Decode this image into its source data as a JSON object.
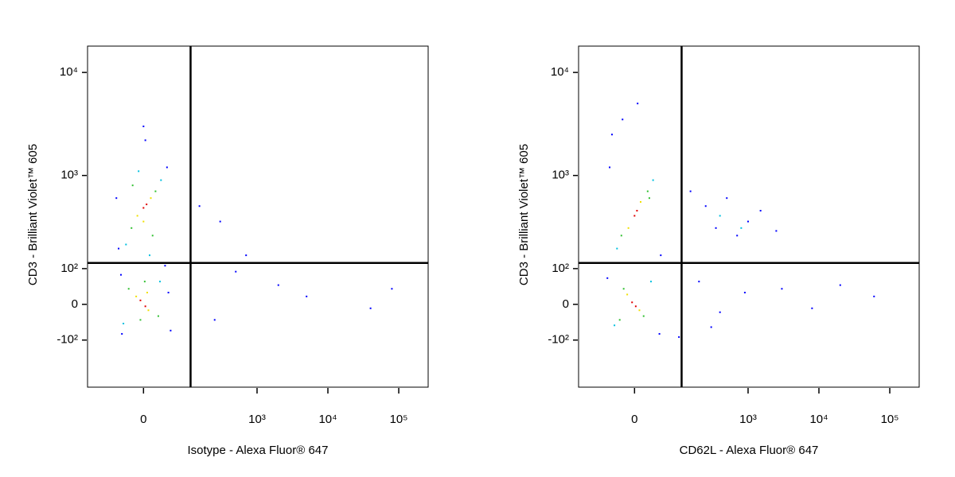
{
  "chart_data": [
    {
      "type": "scatter",
      "xlabel": "Isotype - Alexa Fluor® 647",
      "ylabel": "CD3 - Brilliant Violet™ 605",
      "xlim": [
        -150,
        260000
      ],
      "ylim": [
        -350,
        18000
      ],
      "xticks": [
        0,
        {
          "value": 1000,
          "label": "10³"
        },
        {
          "value": 10000,
          "label": "10⁴"
        },
        {
          "value": 100000,
          "label": "10⁵"
        }
      ],
      "yticks": [
        {
          "value": -100,
          "label": "-10²"
        },
        0,
        {
          "value": 100,
          "label": "10²"
        },
        {
          "value": 1000,
          "label": "10³"
        },
        {
          "value": 10000,
          "label": "10⁴"
        }
      ],
      "gate": {
        "x": 110,
        "y": 120
      },
      "series": [
        {
          "color": "#0000ff",
          "x": [
            -45,
            42,
            -40,
            50,
            -50,
            45,
            0,
            3,
            150,
            300,
            500,
            2000,
            5000,
            40000,
            80000,
            250,
            -38,
            38,
            700
          ],
          "y": [
            180,
            1200,
            80,
            -70,
            600,
            30,
            3000,
            2200,
            500,
            350,
            90,
            50,
            20,
            -10,
            40,
            -40,
            -80,
            110,
            150
          ]
        },
        {
          "color": "#00c0e0",
          "x": [
            -30,
            30,
            -35,
            28,
            10,
            -8
          ],
          "y": [
            200,
            900,
            -50,
            60,
            150,
            1100
          ]
        },
        {
          "color": "#30c030",
          "x": [
            -20,
            20,
            15,
            -18,
            25,
            -25,
            2,
            -5
          ],
          "y": [
            300,
            700,
            250,
            800,
            -30,
            40,
            60,
            -40
          ]
        },
        {
          "color": "#f0e000",
          "x": [
            -10,
            12,
            8,
            -12,
            0,
            6
          ],
          "y": [
            400,
            600,
            -15,
            20,
            350,
            30
          ]
        },
        {
          "color": "#e00000",
          "x": [
            0,
            5,
            -5,
            3
          ],
          "y": [
            480,
            520,
            10,
            -5
          ]
        }
      ]
    },
    {
      "type": "scatter",
      "xlabel": "CD62L - Alexa Fluor® 647",
      "ylabel": "CD3 - Brilliant Violet™ 605",
      "xlim": [
        -150,
        260000
      ],
      "ylim": [
        -350,
        18000
      ],
      "xticks": [
        0,
        {
          "value": 1000,
          "label": "10³"
        },
        {
          "value": 10000,
          "label": "10⁴"
        },
        {
          "value": 100000,
          "label": "10⁵"
        }
      ],
      "yticks": [
        {
          "value": -100,
          "label": "-10²"
        },
        0,
        {
          "value": 100,
          "label": "10²"
        },
        {
          "value": 1000,
          "label": "10³"
        },
        {
          "value": 10000,
          "label": "10⁴"
        }
      ],
      "gate": {
        "x": 110,
        "y": 120
      },
      "series": [
        {
          "color": "#0000ff",
          "x": [
            -45,
            48,
            -50,
            45,
            150,
            250,
            350,
            500,
            700,
            1000,
            1500,
            2500,
            200,
            400,
            900,
            3000,
            8000,
            20000,
            60000,
            100,
            300,
            -40,
            5,
            -20
          ],
          "y": [
            1200,
            150,
            70,
            -80,
            700,
            500,
            300,
            600,
            250,
            350,
            450,
            280,
            60,
            -20,
            30,
            40,
            -10,
            50,
            20,
            -90,
            -60,
            2500,
            5000,
            3500
          ]
        },
        {
          "color": "#00c0e0",
          "x": [
            -30,
            32,
            -35,
            28,
            400,
            800
          ],
          "y": [
            180,
            900,
            -55,
            60,
            400,
            300
          ]
        },
        {
          "color": "#30c030",
          "x": [
            -22,
            22,
            15,
            -18,
            25,
            -25
          ],
          "y": [
            250,
            700,
            -30,
            40,
            600,
            -40
          ]
        },
        {
          "color": "#f0e000",
          "x": [
            -10,
            10,
            8,
            -12
          ],
          "y": [
            300,
            550,
            -15,
            25
          ]
        },
        {
          "color": "#e00000",
          "x": [
            0,
            4,
            -4,
            2
          ],
          "y": [
            400,
            450,
            5,
            -5
          ]
        }
      ]
    }
  ]
}
